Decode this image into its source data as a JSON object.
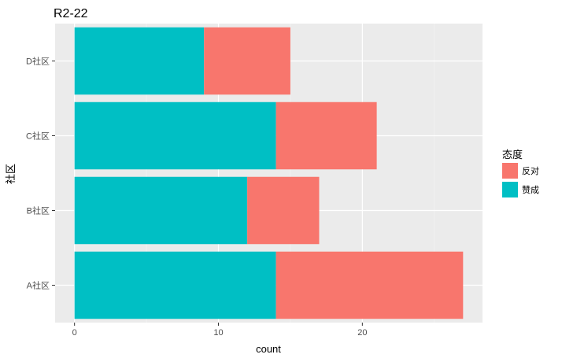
{
  "chart_data": {
    "type": "bar",
    "orientation": "horizontal",
    "stacked": true,
    "title": "R2-22",
    "xlabel": "count",
    "ylabel": "社区",
    "categories": [
      "A社区",
      "B社区",
      "C社区",
      "D社区"
    ],
    "series": [
      {
        "name": "赞成",
        "values": [
          14,
          12,
          14,
          9
        ],
        "color": "#00BFC4"
      },
      {
        "name": "反对",
        "values": [
          13,
          5,
          7,
          6
        ],
        "color": "#F8766D"
      }
    ],
    "xlim": [
      -1.35,
      28.35
    ],
    "x_ticks": [
      0,
      10,
      20
    ],
    "x_minor_ticks": [
      5,
      15,
      25
    ],
    "grid": true,
    "panel_background": "#EBEBEB",
    "legend": {
      "title": "态度",
      "position": "right",
      "items": [
        {
          "label": "反对",
          "color": "#F8766D"
        },
        {
          "label": "赞成",
          "color": "#00BFC4"
        }
      ]
    }
  }
}
